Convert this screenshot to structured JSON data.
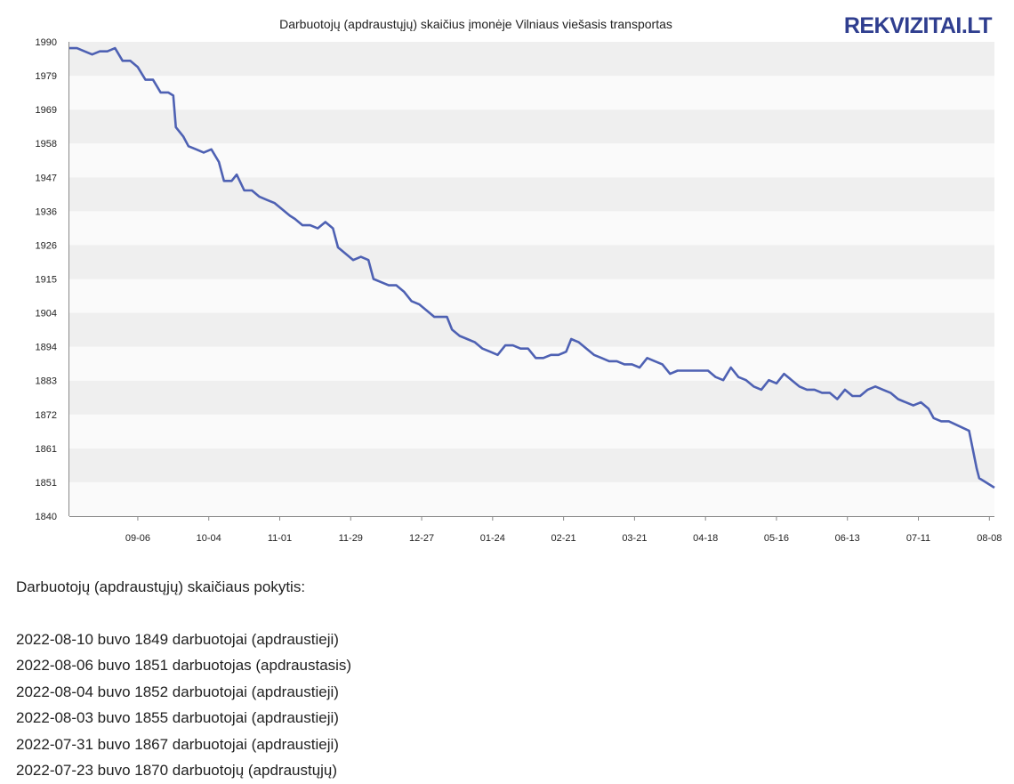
{
  "chart_data": {
    "type": "line",
    "title": "Darbuotojų (apdraustųjų) skaičius įmonėje Vilniaus viešasis transportas",
    "xlabel": "",
    "ylabel": "",
    "x_tick_labels": [
      "09-06",
      "10-04",
      "11-01",
      "11-29",
      "12-27",
      "01-24",
      "02-21",
      "03-21",
      "04-18",
      "05-16",
      "06-13",
      "07-11",
      "08-08"
    ],
    "x_ticks": [
      "2021-09-06",
      "2021-10-04",
      "2021-11-01",
      "2021-11-29",
      "2021-12-27",
      "2022-01-24",
      "2022-02-21",
      "2022-03-21",
      "2022-04-18",
      "2022-05-16",
      "2022-06-13",
      "2022-07-11",
      "2022-08-08"
    ],
    "xlim": [
      "2021-08-10",
      "2022-08-10"
    ],
    "y_ticks": [
      1990,
      1979,
      1969,
      1958,
      1947,
      1936,
      1926,
      1915,
      1904,
      1894,
      1883,
      1872,
      1861,
      1851,
      1840
    ],
    "ylim": [
      1840,
      1990
    ],
    "grid": "horizontal alternating bands",
    "color": "#4e61b3",
    "series": [
      {
        "points": [
          [
            "2021-08-10",
            1988
          ],
          [
            "2021-08-13",
            1988
          ],
          [
            "2021-08-16",
            1987
          ],
          [
            "2021-08-19",
            1986
          ],
          [
            "2021-08-22",
            1987
          ],
          [
            "2021-08-25",
            1987
          ],
          [
            "2021-08-28",
            1988
          ],
          [
            "2021-08-31",
            1984
          ],
          [
            "2021-09-03",
            1984
          ],
          [
            "2021-09-06",
            1982
          ],
          [
            "2021-09-09",
            1978
          ],
          [
            "2021-09-12",
            1978
          ],
          [
            "2021-09-15",
            1974
          ],
          [
            "2021-09-18",
            1974
          ],
          [
            "2021-09-20",
            1973
          ],
          [
            "2021-09-21",
            1963
          ],
          [
            "2021-09-24",
            1960
          ],
          [
            "2021-09-26",
            1957
          ],
          [
            "2021-09-29",
            1956
          ],
          [
            "2021-10-02",
            1955
          ],
          [
            "2021-10-05",
            1956
          ],
          [
            "2021-10-08",
            1952
          ],
          [
            "2021-10-10",
            1946
          ],
          [
            "2021-10-13",
            1946
          ],
          [
            "2021-10-15",
            1948
          ],
          [
            "2021-10-18",
            1943
          ],
          [
            "2021-10-21",
            1943
          ],
          [
            "2021-10-24",
            1941
          ],
          [
            "2021-10-27",
            1940
          ],
          [
            "2021-10-30",
            1939
          ],
          [
            "2021-11-02",
            1937
          ],
          [
            "2021-11-05",
            1935
          ],
          [
            "2021-11-07",
            1934
          ],
          [
            "2021-11-10",
            1932
          ],
          [
            "2021-11-13",
            1932
          ],
          [
            "2021-11-16",
            1931
          ],
          [
            "2021-11-19",
            1933
          ],
          [
            "2021-11-22",
            1931
          ],
          [
            "2021-11-24",
            1925
          ],
          [
            "2021-11-27",
            1923
          ],
          [
            "2021-11-30",
            1921
          ],
          [
            "2021-12-03",
            1922
          ],
          [
            "2021-12-06",
            1921
          ],
          [
            "2021-12-08",
            1915
          ],
          [
            "2021-12-11",
            1914
          ],
          [
            "2021-12-14",
            1913
          ],
          [
            "2021-12-17",
            1913
          ],
          [
            "2021-12-20",
            1911
          ],
          [
            "2021-12-23",
            1908
          ],
          [
            "2021-12-26",
            1907
          ],
          [
            "2021-12-29",
            1905
          ],
          [
            "2022-01-01",
            1903
          ],
          [
            "2022-01-04",
            1903
          ],
          [
            "2022-01-06",
            1903
          ],
          [
            "2022-01-08",
            1899
          ],
          [
            "2022-01-11",
            1897
          ],
          [
            "2022-01-14",
            1896
          ],
          [
            "2022-01-17",
            1895
          ],
          [
            "2022-01-20",
            1893
          ],
          [
            "2022-01-23",
            1892
          ],
          [
            "2022-01-26",
            1891
          ],
          [
            "2022-01-29",
            1894
          ],
          [
            "2022-02-01",
            1894
          ],
          [
            "2022-02-04",
            1893
          ],
          [
            "2022-02-07",
            1893
          ],
          [
            "2022-02-10",
            1890
          ],
          [
            "2022-02-13",
            1890
          ],
          [
            "2022-02-16",
            1891
          ],
          [
            "2022-02-19",
            1891
          ],
          [
            "2022-02-22",
            1892
          ],
          [
            "2022-02-24",
            1896
          ],
          [
            "2022-02-27",
            1895
          ],
          [
            "2022-03-02",
            1893
          ],
          [
            "2022-03-05",
            1891
          ],
          [
            "2022-03-08",
            1890
          ],
          [
            "2022-03-11",
            1889
          ],
          [
            "2022-03-14",
            1889
          ],
          [
            "2022-03-17",
            1888
          ],
          [
            "2022-03-20",
            1888
          ],
          [
            "2022-03-23",
            1887
          ],
          [
            "2022-03-26",
            1890
          ],
          [
            "2022-03-29",
            1889
          ],
          [
            "2022-04-01",
            1888
          ],
          [
            "2022-04-04",
            1885
          ],
          [
            "2022-04-07",
            1886
          ],
          [
            "2022-04-10",
            1886
          ],
          [
            "2022-04-13",
            1886
          ],
          [
            "2022-04-16",
            1886
          ],
          [
            "2022-04-19",
            1886
          ],
          [
            "2022-04-22",
            1884
          ],
          [
            "2022-04-25",
            1883
          ],
          [
            "2022-04-28",
            1887
          ],
          [
            "2022-05-01",
            1884
          ],
          [
            "2022-05-04",
            1883
          ],
          [
            "2022-05-07",
            1881
          ],
          [
            "2022-05-10",
            1880
          ],
          [
            "2022-05-13",
            1883
          ],
          [
            "2022-05-16",
            1882
          ],
          [
            "2022-05-19",
            1885
          ],
          [
            "2022-05-22",
            1883
          ],
          [
            "2022-05-25",
            1881
          ],
          [
            "2022-05-28",
            1880
          ],
          [
            "2022-05-31",
            1880
          ],
          [
            "2022-06-03",
            1879
          ],
          [
            "2022-06-06",
            1879
          ],
          [
            "2022-06-09",
            1877
          ],
          [
            "2022-06-12",
            1880
          ],
          [
            "2022-06-15",
            1878
          ],
          [
            "2022-06-18",
            1878
          ],
          [
            "2022-06-21",
            1880
          ],
          [
            "2022-06-24",
            1881
          ],
          [
            "2022-06-27",
            1880
          ],
          [
            "2022-06-30",
            1879
          ],
          [
            "2022-07-03",
            1877
          ],
          [
            "2022-07-06",
            1876
          ],
          [
            "2022-07-09",
            1875
          ],
          [
            "2022-07-12",
            1876
          ],
          [
            "2022-07-15",
            1874
          ],
          [
            "2022-07-17",
            1871
          ],
          [
            "2022-07-20",
            1870
          ],
          [
            "2022-07-23",
            1870
          ],
          [
            "2022-07-31",
            1867
          ],
          [
            "2022-08-03",
            1855
          ],
          [
            "2022-08-04",
            1852
          ],
          [
            "2022-08-06",
            1851
          ],
          [
            "2022-08-10",
            1849
          ]
        ]
      }
    ]
  },
  "logo_text": "REKVIZITAI.LT",
  "changes": {
    "heading": "Darbuotojų (apdraustųjų) skaičiaus pokytis:",
    "items": [
      "2022-08-10 buvo 1849 darbuotojai (apdraustieji)",
      "2022-08-06 buvo 1851 darbuotojas (apdraustasis)",
      "2022-08-04 buvo 1852 darbuotojai (apdraustieji)",
      "2022-08-03 buvo 1855 darbuotojai (apdraustieji)",
      "2022-07-31 buvo 1867 darbuotojai (apdraustieji)",
      "2022-07-23 buvo 1870 darbuotojų (apdraustųjų)"
    ]
  }
}
